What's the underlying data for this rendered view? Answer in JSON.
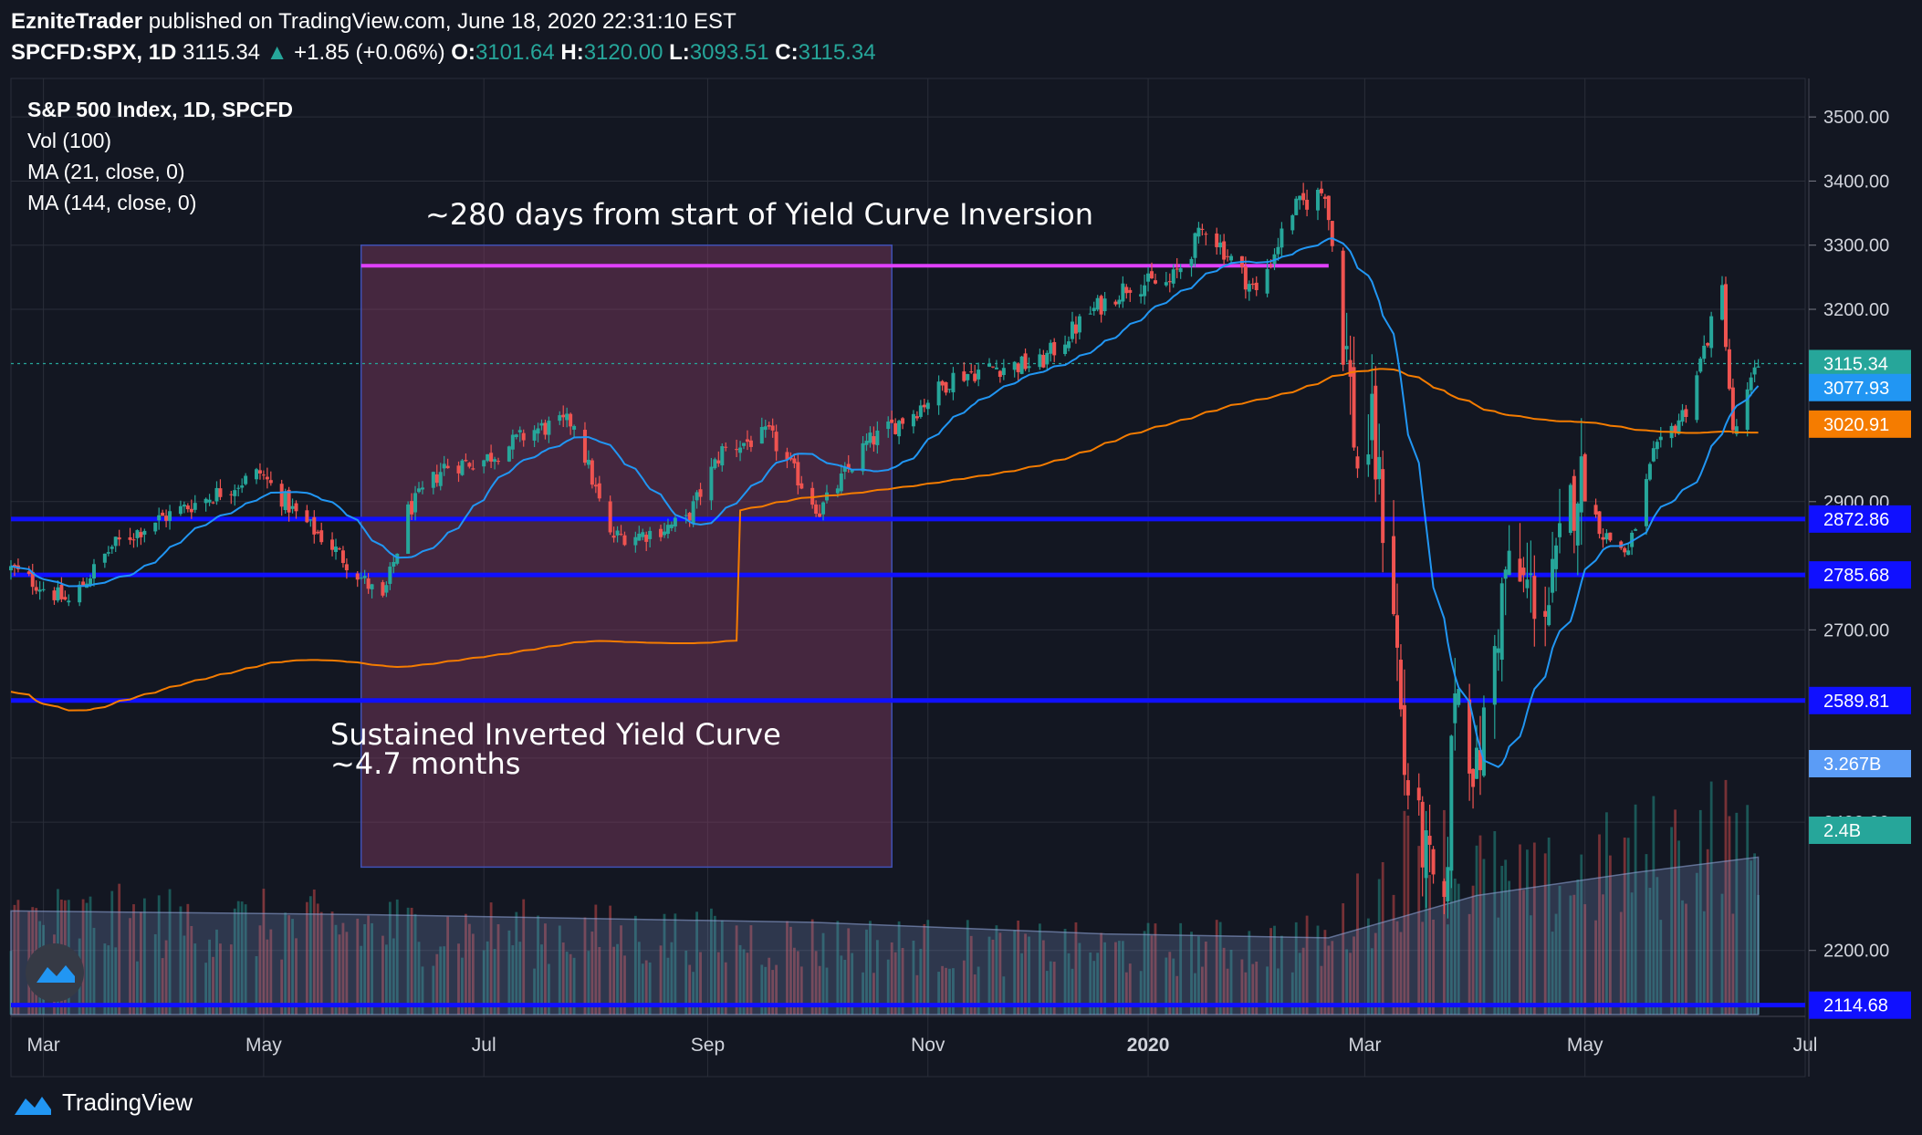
{
  "header": {
    "author": "EzniteTrader",
    "published": "published on TradingView.com, June 18, 2020 22:31:10 EST",
    "symbol": "SPCFD:SPX, 1D",
    "last": "3115.34",
    "change": "+1.85 (+0.06%)",
    "o_label": "O:",
    "o": "3101.64",
    "h_label": "H:",
    "h": "3120.00",
    "l_label": "L:",
    "l": "3093.51",
    "c_label": "C:",
    "c": "3115.34"
  },
  "legend": {
    "title": "S&P 500 Index, 1D, SPCFD",
    "vol": "Vol (100)",
    "ma21": "MA (21, close, 0)",
    "ma144": "MA (144, close, 0)"
  },
  "annotations": {
    "top": "~280 days from start of Yield Curve Inversion",
    "box_line1": "Sustained Inverted Yield Curve",
    "box_line2": "~4.7 months"
  },
  "brand": "TradingView",
  "colors": {
    "background": "#131722",
    "up": "#26a69a",
    "down": "#ef5350",
    "ma21": "#2196f3",
    "ma144": "#f57c00",
    "hline": "#1010ff",
    "magenta": "#e040fb",
    "box": "#5c3249"
  },
  "chart_data": {
    "type": "candlestick",
    "title": "S&P 500 Index, 1D, SPCFD",
    "ylim": [
      2100,
      3560
    ],
    "y_ticks": [
      "3500.00",
      "3400.00",
      "3300.00",
      "3200.00",
      "2900.00",
      "2700.00",
      "2500.00",
      "2400.00",
      "2200.00"
    ],
    "x_ticks": [
      "Mar",
      "May",
      "Jul",
      "Sep",
      "Nov",
      "2020",
      "Mar",
      "May",
      "Jul"
    ],
    "x_tick_dates": [
      "2019-03",
      "2019-05",
      "2019-07",
      "2019-09",
      "2019-11",
      "2020-01",
      "2020-03",
      "2020-05",
      "2020-07"
    ],
    "x_range": [
      "2019-02-20",
      "2020-07-01"
    ],
    "price_labels": [
      {
        "value": "3115.34",
        "color": "#26a69a",
        "series": "last"
      },
      {
        "value": "3077.93",
        "color": "#2196f3",
        "series": "ma21"
      },
      {
        "value": "3020.91",
        "color": "#f57c00",
        "series": "ma144"
      },
      {
        "value": "2872.86",
        "color": "#1010ff",
        "series": "hline"
      },
      {
        "value": "2785.68",
        "color": "#1010ff",
        "series": "hline"
      },
      {
        "value": "2589.81",
        "color": "#1010ff",
        "series": "hline"
      },
      {
        "value": "2114.68",
        "color": "#1010ff",
        "series": "hline"
      }
    ],
    "vol_labels": [
      {
        "value": "3.267B",
        "color": "#5b9cf6"
      },
      {
        "value": "2.4B",
        "color": "#26a69a"
      }
    ],
    "horizontal_levels": [
      2872.86,
      2785.68,
      2589.81,
      2114.68
    ],
    "magenta_level": {
      "value": 3268,
      "from": "2019-05-28",
      "to": "2020-02-20"
    },
    "box": {
      "from": "2019-05-28",
      "to": "2019-10-22",
      "top": 3300,
      "bottom": 2330
    },
    "price_path": [
      [
        "2019-02-20",
        2795
      ],
      [
        "2019-03-08",
        2743
      ],
      [
        "2019-03-20",
        2830
      ],
      [
        "2019-04-01",
        2870
      ],
      [
        "2019-04-15",
        2905
      ],
      [
        "2019-04-30",
        2945
      ],
      [
        "2019-05-10",
        2880
      ],
      [
        "2019-05-20",
        2830
      ],
      [
        "2019-06-03",
        2745
      ],
      [
        "2019-06-10",
        2885
      ],
      [
        "2019-06-20",
        2955
      ],
      [
        "2019-07-01",
        2965
      ],
      [
        "2019-07-15",
        3012
      ],
      [
        "2019-07-26",
        3025
      ],
      [
        "2019-08-05",
        2845
      ],
      [
        "2019-08-15",
        2850
      ],
      [
        "2019-08-26",
        2870
      ],
      [
        "2019-09-05",
        2980
      ],
      [
        "2019-09-18",
        3005
      ],
      [
        "2019-10-02",
        2885
      ],
      [
        "2019-10-15",
        2990
      ],
      [
        "2019-10-28",
        3040
      ],
      [
        "2019-11-08",
        3095
      ],
      [
        "2019-11-20",
        3110
      ],
      [
        "2019-12-02",
        3115
      ],
      [
        "2019-12-16",
        3195
      ],
      [
        "2019-12-27",
        3240
      ],
      [
        "2020-01-07",
        3240
      ],
      [
        "2020-01-17",
        3330
      ],
      [
        "2020-01-31",
        3225
      ],
      [
        "2020-02-10",
        3355
      ],
      [
        "2020-02-19",
        3386
      ],
      [
        "2020-02-25",
        3130
      ],
      [
        "2020-02-28",
        2955
      ],
      [
        "2020-03-03",
        3005
      ],
      [
        "2020-03-09",
        2750
      ],
      [
        "2020-03-12",
        2480
      ],
      [
        "2020-03-16",
        2385
      ],
      [
        "2020-03-23",
        2237
      ],
      [
        "2020-03-26",
        2630
      ],
      [
        "2020-04-01",
        2470
      ],
      [
        "2020-04-09",
        2790
      ],
      [
        "2020-04-21",
        2740
      ],
      [
        "2020-04-29",
        2940
      ],
      [
        "2020-05-06",
        2850
      ],
      [
        "2020-05-13",
        2820
      ],
      [
        "2020-05-20",
        2970
      ],
      [
        "2020-05-29",
        3045
      ],
      [
        "2020-06-08",
        3230
      ],
      [
        "2020-06-11",
        3002
      ],
      [
        "2020-06-15",
        3066
      ],
      [
        "2020-06-18",
        3115
      ]
    ],
    "volume_scale": [
      0,
      3.267
    ],
    "volume_path": [
      [
        "2019-02-20",
        1.25
      ],
      [
        "2019-06-01",
        1.15
      ],
      [
        "2019-10-01",
        0.95
      ],
      [
        "2019-12-20",
        0.85
      ],
      [
        "2020-02-20",
        0.95
      ],
      [
        "2020-03-16",
        2.2
      ],
      [
        "2020-04-15",
        1.6
      ],
      [
        "2020-06-10",
        2.4
      ],
      [
        "2020-06-18",
        1.8
      ]
    ],
    "vol_ma_path": [
      [
        "2019-02-20",
        1.35
      ],
      [
        "2019-06-01",
        1.3
      ],
      [
        "2019-10-01",
        1.2
      ],
      [
        "2019-12-20",
        1.05
      ],
      [
        "2020-02-20",
        1.0
      ],
      [
        "2020-04-01",
        1.55
      ],
      [
        "2020-05-15",
        1.85
      ],
      [
        "2020-06-18",
        2.05
      ]
    ]
  }
}
